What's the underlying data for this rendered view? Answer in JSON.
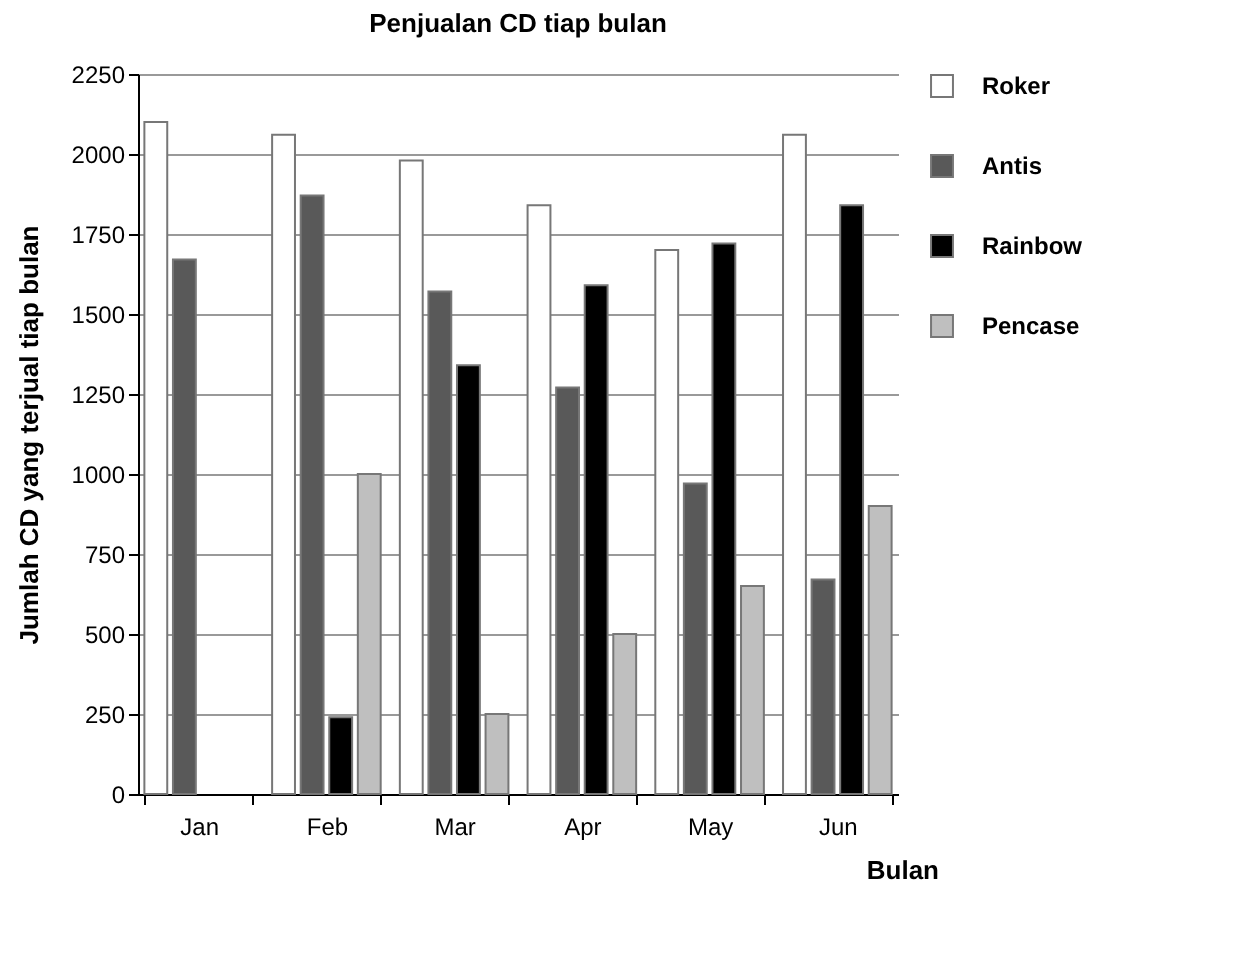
{
  "chart_data": {
    "type": "bar",
    "title": "Penjualan CD tiap bulan",
    "xlabel": "Bulan",
    "ylabel": "Jumlah CD yang terjual tiap bulan",
    "categories": [
      "Jan",
      "Feb",
      "Mar",
      "Apr",
      "May",
      "Jun"
    ],
    "series": [
      {
        "name": "Roker",
        "color": "#ffffff",
        "values": [
          2100,
          2060,
          1980,
          1840,
          1700,
          2060
        ]
      },
      {
        "name": "Antis",
        "color": "#595959",
        "values": [
          1670,
          1870,
          1570,
          1270,
          970,
          670
        ]
      },
      {
        "name": "Rainbow",
        "color": "#000000",
        "values": [
          0,
          240,
          1340,
          1590,
          1720,
          1840
        ]
      },
      {
        "name": "Pencase",
        "color": "#bfbfbf",
        "values": [
          0,
          1000,
          250,
          500,
          650,
          900
        ]
      }
    ],
    "ylim": [
      0,
      2250
    ],
    "yticks": [
      0,
      250,
      500,
      750,
      1000,
      1250,
      1500,
      1750,
      2000,
      2250
    ],
    "grid": "y",
    "legend": "right"
  }
}
